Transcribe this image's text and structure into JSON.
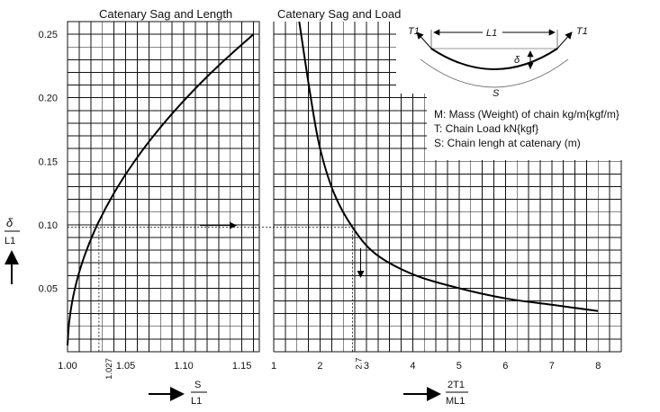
{
  "chart_data": [
    {
      "type": "line",
      "title": "Catenary Sag and Length",
      "xlabel": "S / L1",
      "ylabel": "δ / L1",
      "xlim": [
        1.0,
        1.165
      ],
      "ylim": [
        0,
        0.26
      ],
      "x_ticks": [
        "1.00",
        "1.05",
        "1.10",
        "1.15"
      ],
      "x_ticks_minor": [
        "1.027"
      ],
      "y_ticks": [
        "0.05",
        "0.10",
        "0.15",
        "0.20",
        "0.25"
      ],
      "grid": true,
      "series": [
        {
          "x": [
            1.0,
            1.0016,
            1.0064,
            1.0144,
            1.0256,
            1.04,
            1.0576,
            1.0784,
            1.1024,
            1.1296,
            1.16
          ],
          "y": [
            0.005,
            0.025,
            0.05,
            0.075,
            0.1,
            0.125,
            0.15,
            0.175,
            0.2,
            0.225,
            0.25
          ]
        }
      ],
      "reference": {
        "x": 1.027,
        "y": 0.098
      }
    },
    {
      "type": "line",
      "title": "Catenary Sag and Load",
      "xlabel": "2T1 / ML1",
      "ylabel": "δ / L1",
      "xlim": [
        1,
        8.5
      ],
      "ylim": [
        0,
        0.26
      ],
      "x_ticks": [
        "1",
        "2",
        "3",
        "4",
        "5",
        "6",
        "7",
        "8"
      ],
      "x_ticks_minor": [
        "2.7"
      ],
      "grid": true,
      "series": [
        {
          "x": [
            1.55,
            1.8,
            2.0,
            2.3,
            2.7,
            3.2,
            4.0,
            5.0,
            6.0,
            7.0,
            8.0
          ],
          "y": [
            0.26,
            0.2,
            0.16,
            0.125,
            0.098,
            0.077,
            0.061,
            0.05,
            0.042,
            0.037,
            0.032
          ]
        }
      ],
      "reference": {
        "x": 2.7,
        "y": 0.098
      }
    }
  ],
  "diagram": {
    "left_tension": "T1",
    "right_tension": "T1",
    "span": "L1",
    "sag": "δ",
    "length": "S"
  },
  "legend": {
    "line1": "M: Mass (Weight) of chain   kg/m{kgf/m}",
    "line2": "T: Chain Load   kN{kgf}",
    "line3": "S: Chain lengh at catenary (m)"
  },
  "axis_labels": {
    "y_num": "δ",
    "y_den": "L1",
    "x1_num": "S",
    "x1_den": "L1",
    "x2_num": "2T1",
    "x2_den": "ML1"
  }
}
